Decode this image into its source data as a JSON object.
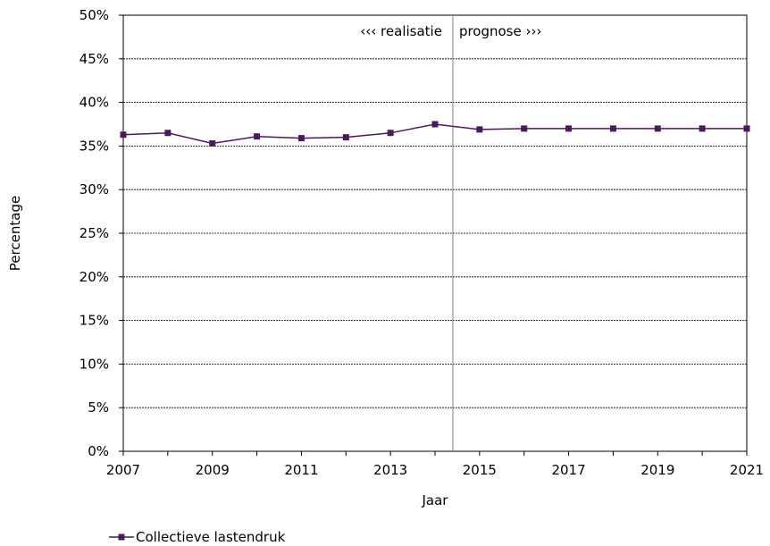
{
  "chart_data": {
    "type": "line",
    "xlabel": "Jaar",
    "ylabel": "Percentage",
    "xlim": [
      2007,
      2021
    ],
    "ylim": [
      0,
      50
    ],
    "x_ticks": [
      "2007",
      "2009",
      "2011",
      "2013",
      "2015",
      "2017",
      "2019",
      "2021"
    ],
    "y_ticks": [
      "0%",
      "5%",
      "10%",
      "15%",
      "20%",
      "25%",
      "30%",
      "35%",
      "40%",
      "45%",
      "50%"
    ],
    "grid": "horizontal",
    "divider_x": 2014.4,
    "annotations": {
      "left": "‹‹‹ realisatie",
      "right": "prognose ›››"
    },
    "legend_position": "bottom-left",
    "series": [
      {
        "name": "Collectieve lastendruk",
        "color": "#4a1a5a",
        "x": [
          2007,
          2008,
          2009,
          2010,
          2011,
          2012,
          2013,
          2014,
          2015,
          2016,
          2017,
          2018,
          2019,
          2020,
          2021
        ],
        "y": [
          36.3,
          36.5,
          35.3,
          36.1,
          35.9,
          36.0,
          36.5,
          37.5,
          36.9,
          37.0,
          37.0,
          37.0,
          37.0,
          37.0,
          37.0
        ]
      }
    ]
  }
}
